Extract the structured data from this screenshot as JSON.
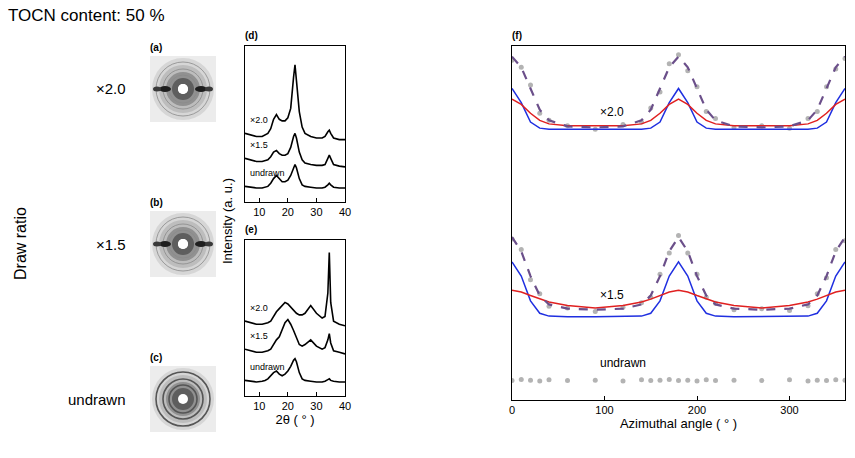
{
  "title": "TOCN content: 50 %",
  "row_axis_label": "Draw ratio",
  "patterns": [
    {
      "panel": "(a)",
      "row": "×2.0"
    },
    {
      "panel": "(b)",
      "row": "×1.5"
    },
    {
      "panel": "(c)",
      "row": "undrawn"
    }
  ],
  "chart_data": [
    {
      "panel": "(d)",
      "type": "line",
      "ylabel": "Intensity (a. u.)",
      "x": [
        5,
        7,
        9,
        11,
        12,
        13,
        14,
        15,
        16,
        17,
        18,
        19,
        20,
        21,
        22,
        22.5,
        23,
        24,
        25,
        26,
        28,
        30,
        32,
        33,
        34,
        34.5,
        35,
        36,
        38,
        40
      ],
      "xlim": [
        5,
        40
      ],
      "xticks": [
        10,
        20,
        30,
        40
      ],
      "ylim": [
        0,
        100
      ],
      "tick_labels": "x",
      "series": [
        {
          "name": "×2.0",
          "color": "#000000",
          "values": [
            44,
            43,
            42,
            42,
            43,
            44,
            47,
            53,
            56,
            53,
            52,
            52,
            54,
            60,
            80,
            88,
            78,
            58,
            48,
            44,
            42,
            41,
            41,
            42,
            45,
            46,
            44,
            41,
            40,
            40
          ]
        },
        {
          "name": "×1.5",
          "color": "#000000",
          "values": [
            28,
            27,
            26,
            26,
            26.5,
            27,
            29,
            32,
            33,
            31,
            30,
            30,
            31,
            35,
            42,
            44,
            41,
            32,
            27,
            25,
            24,
            23.5,
            23.5,
            24,
            28,
            30,
            28,
            24,
            23,
            22.5
          ]
        },
        {
          "name": "undrawn",
          "color": "#000000",
          "values": [
            10,
            9.5,
            9,
            9,
            9.5,
            10,
            12,
            15,
            17,
            15,
            13,
            13,
            14,
            17,
            22,
            24,
            22,
            15,
            11,
            10,
            9.5,
            9,
            9,
            9.5,
            11,
            12,
            11,
            9.5,
            9,
            9
          ]
        }
      ]
    },
    {
      "panel": "(e)",
      "type": "line",
      "xlabel": "2θ ( ° )",
      "x": [
        5,
        7,
        9,
        11,
        12,
        13,
        14,
        15,
        16,
        17,
        18,
        19,
        20,
        21,
        22,
        22.5,
        23,
        24,
        25,
        26,
        28,
        30,
        32,
        33,
        34,
        34.5,
        35,
        36,
        38,
        40
      ],
      "xlim": [
        5,
        40
      ],
      "xticks": [
        10,
        20,
        30,
        40
      ],
      "ylim": [
        0,
        100
      ],
      "tick_labels": "x",
      "series": [
        {
          "name": "×2.0",
          "color": "#000000",
          "values": [
            48,
            47,
            46,
            46,
            46.5,
            47,
            48,
            51,
            54,
            56,
            58,
            60,
            59,
            57,
            55,
            54,
            53,
            52,
            52,
            53,
            58,
            53,
            50,
            51,
            66,
            92,
            60,
            48,
            46,
            45
          ]
        },
        {
          "name": "×1.5",
          "color": "#000000",
          "values": [
            30,
            29,
            28,
            28,
            28.5,
            29,
            30,
            33,
            36,
            38,
            42,
            47,
            49,
            46,
            42,
            40,
            37,
            33,
            32,
            33,
            36,
            32,
            30,
            31,
            36,
            40,
            34,
            29,
            28,
            27
          ]
        },
        {
          "name": "undrawn",
          "color": "#000000",
          "values": [
            10,
            9.5,
            9,
            9.5,
            10,
            11,
            13,
            15,
            16,
            14,
            13,
            14,
            16,
            19,
            23,
            24,
            22,
            15,
            11,
            10,
            9.5,
            9,
            9,
            9.5,
            10.5,
            11,
            10,
            9.5,
            9,
            9
          ]
        }
      ]
    },
    {
      "panel": "(f)",
      "type": "line",
      "xlabel": "Azimuthal angle ( ° )",
      "x": [
        0,
        10,
        20,
        30,
        40,
        60,
        90,
        120,
        140,
        150,
        160,
        170,
        180,
        190,
        200,
        210,
        220,
        240,
        270,
        300,
        320,
        330,
        340,
        350,
        360
      ],
      "xlim": [
        0,
        360
      ],
      "xticks": [
        0,
        100,
        200,
        300
      ],
      "ylim": [
        0,
        100
      ],
      "tick_labels": "x",
      "series": [
        {
          "name": "×2.0",
          "color": "#b3b3b3",
          "marker": "circle",
          "values": [
            96,
            94,
            89,
            81,
            79,
            77.5,
            76.5,
            77.8,
            78.5,
            82.5,
            87,
            95,
            97.5,
            93,
            88.5,
            81.5,
            79.5,
            77,
            77.5,
            76.8,
            79.5,
            81.5,
            88.5,
            93.5,
            96.5
          ],
          "components": [
            {
              "color": "#1f2fe0",
              "values": [
                88,
                84,
                78.5,
                76.8,
                76.5,
                76.5,
                76.5,
                76.5,
                76.5,
                76.8,
                78.5,
                84,
                88,
                84,
                78.5,
                76.8,
                76.5,
                76.5,
                76.5,
                76.5,
                76.5,
                76.8,
                78.5,
                84,
                88
              ]
            },
            {
              "color": "#e02020",
              "values": [
                85,
                83.5,
                81,
                79,
                78,
                77.5,
                77.5,
                77.5,
                78,
                79,
                81,
                83.5,
                85,
                83.5,
                81,
                79,
                78,
                77.5,
                77.5,
                77.5,
                78,
                79,
                81,
                83.5,
                85
              ]
            }
          ],
          "fit": {
            "color": "#6b4f8a",
            "line_style": "dash",
            "values": [
              97,
              94,
              88,
              82,
              79,
              77.3,
              77,
              77.3,
              79,
              82,
              88,
              94,
              97,
              94,
              88,
              82,
              79,
              77.3,
              77,
              77.3,
              79,
              82,
              88,
              94,
              97
            ]
          }
        },
        {
          "name": "×1.5",
          "color": "#b3b3b3",
          "marker": "circle",
          "values": [
            45.5,
            42.5,
            34,
            30,
            26.5,
            26,
            25,
            26.2,
            27.5,
            29,
            35.5,
            41.5,
            46.5,
            41.5,
            35.5,
            29,
            27.3,
            25.5,
            25.8,
            25.3,
            26.6,
            30,
            34.5,
            42.5,
            45
          ],
          "components": [
            {
              "color": "#1f2fe0",
              "values": [
                39,
                35,
                28,
                24.5,
                23.7,
                23.5,
                23.5,
                23.5,
                23.7,
                24.5,
                28,
                35,
                39,
                35,
                28,
                24.5,
                23.7,
                23.5,
                23.5,
                23.5,
                23.7,
                24.5,
                28,
                35,
                39
              ]
            },
            {
              "color": "#e02020",
              "values": [
                31,
                30.5,
                29.5,
                28.5,
                27.7,
                26.7,
                26,
                26.7,
                27.7,
                28.5,
                29.5,
                30.5,
                31,
                30.5,
                29.5,
                28.5,
                27.7,
                26.7,
                26,
                26.7,
                27.7,
                28.5,
                29.5,
                30.5,
                31
              ]
            }
          ],
          "fit": {
            "color": "#6b4f8a",
            "line_style": "dash",
            "values": [
              46,
              42,
              35,
              29.5,
              27,
              25.8,
              25.5,
              25.8,
              27,
              29.5,
              35,
              42,
              46,
              42,
              35,
              29.5,
              27,
              25.8,
              25.5,
              25.8,
              27,
              29.5,
              35,
              42,
              46
            ]
          }
        },
        {
          "name": "undrawn",
          "color": "#b3b3b3",
          "marker": "circle",
          "values": [
            5.5,
            5.8,
            5.6,
            5.4,
            5.7,
            5.5,
            5.6,
            5.4,
            5.7,
            5.5,
            5.6,
            5.8,
            5.5,
            5.6,
            5.4,
            5.7,
            5.5,
            5.6,
            5.5,
            5.7,
            5.4,
            5.6,
            5.5,
            5.7,
            5.6
          ]
        }
      ]
    }
  ]
}
